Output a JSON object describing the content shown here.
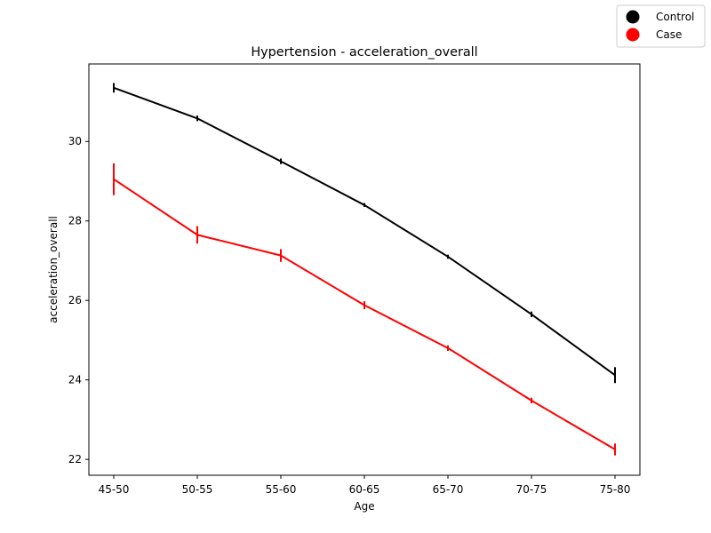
{
  "chart_data": {
    "type": "line",
    "title": "Hypertension - acceleration_overall",
    "xlabel": "Age",
    "ylabel": "acceleration_overall",
    "categories": [
      "45-50",
      "50-55",
      "55-60",
      "60-65",
      "65-70",
      "70-75",
      "75-80"
    ],
    "ylim": [
      21.6,
      31.95
    ],
    "yticks": [
      22,
      24,
      26,
      28,
      30
    ],
    "grid": false,
    "legend_position": "top-right",
    "series": [
      {
        "name": "Control",
        "color": "#000000",
        "values": [
          31.35,
          30.58,
          29.5,
          28.4,
          27.1,
          25.65,
          24.12
        ],
        "errors": [
          0.12,
          0.07,
          0.07,
          0.05,
          0.05,
          0.07,
          0.2
        ]
      },
      {
        "name": "Case",
        "color": "#ff0000",
        "values": [
          29.05,
          27.65,
          27.13,
          25.88,
          24.8,
          23.48,
          22.25
        ],
        "errors": [
          0.4,
          0.22,
          0.16,
          0.1,
          0.07,
          0.07,
          0.15
        ]
      }
    ]
  }
}
